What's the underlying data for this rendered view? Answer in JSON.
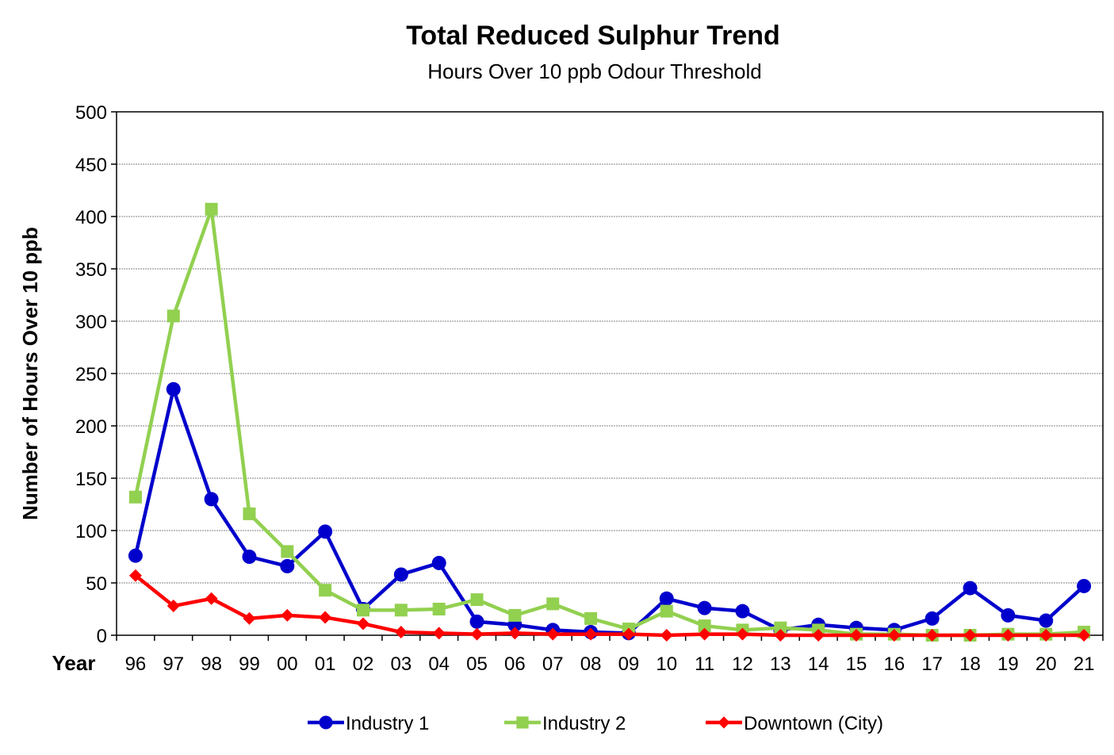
{
  "chart_data": {
    "type": "line",
    "title": "Total Reduced Sulphur Trend",
    "subtitle": "Hours Over 10 ppb Odour Threshold",
    "xlabel": "Year",
    "ylabel": "Number of Hours Over 10 ppb",
    "ylim": [
      0,
      500
    ],
    "yticks": [
      0,
      50,
      100,
      150,
      200,
      250,
      300,
      350,
      400,
      450,
      500
    ],
    "grid": true,
    "legend_position": "bottom",
    "categories": [
      "96",
      "97",
      "98",
      "99",
      "00",
      "01",
      "02",
      "03",
      "04",
      "05",
      "06",
      "07",
      "08",
      "09",
      "10",
      "11",
      "12",
      "13",
      "14",
      "15",
      "16",
      "17",
      "18",
      "19",
      "20",
      "21"
    ],
    "series": [
      {
        "name": "Industry 1",
        "color": "#0000CC",
        "marker": "circle",
        "values": [
          76,
          235,
          130,
          75,
          66,
          99,
          25,
          58,
          69,
          13,
          10,
          5,
          3,
          2,
          35,
          26,
          23,
          5,
          10,
          7,
          5,
          16,
          45,
          19,
          14,
          47
        ]
      },
      {
        "name": "Industry 2",
        "color": "#92D050",
        "marker": "square",
        "values": [
          132,
          305,
          407,
          116,
          80,
          43,
          24,
          24,
          25,
          34,
          19,
          30,
          16,
          6,
          23,
          9,
          5,
          7,
          5,
          1,
          1,
          0,
          0,
          1,
          1,
          3
        ]
      },
      {
        "name": "Downtown (City)",
        "color": "#FF0000",
        "marker": "diamond",
        "values": [
          57,
          28,
          35,
          16,
          19,
          17,
          11,
          3,
          2,
          1,
          2,
          1,
          1,
          1,
          0,
          1,
          1,
          0,
          0,
          0,
          0,
          0,
          0,
          0,
          0,
          0
        ]
      }
    ]
  }
}
